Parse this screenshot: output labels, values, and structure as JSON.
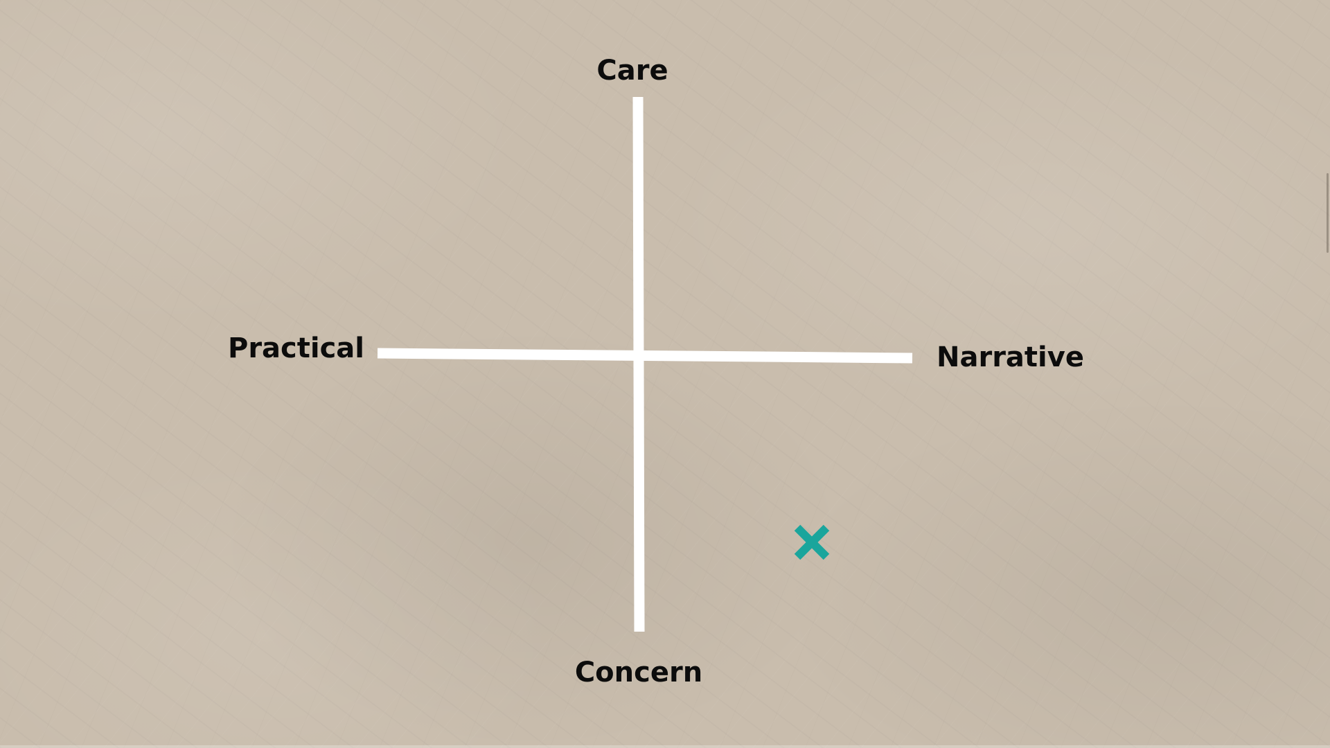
{
  "diagram": {
    "labels": {
      "top": "Care",
      "bottom": "Concern",
      "left": "Practical",
      "right": "Narrative"
    },
    "axis_color": "#ffffff",
    "marker": {
      "icon": "x-mark-icon",
      "color": "#1aa59c",
      "quadrant": "bottom-right"
    }
  }
}
